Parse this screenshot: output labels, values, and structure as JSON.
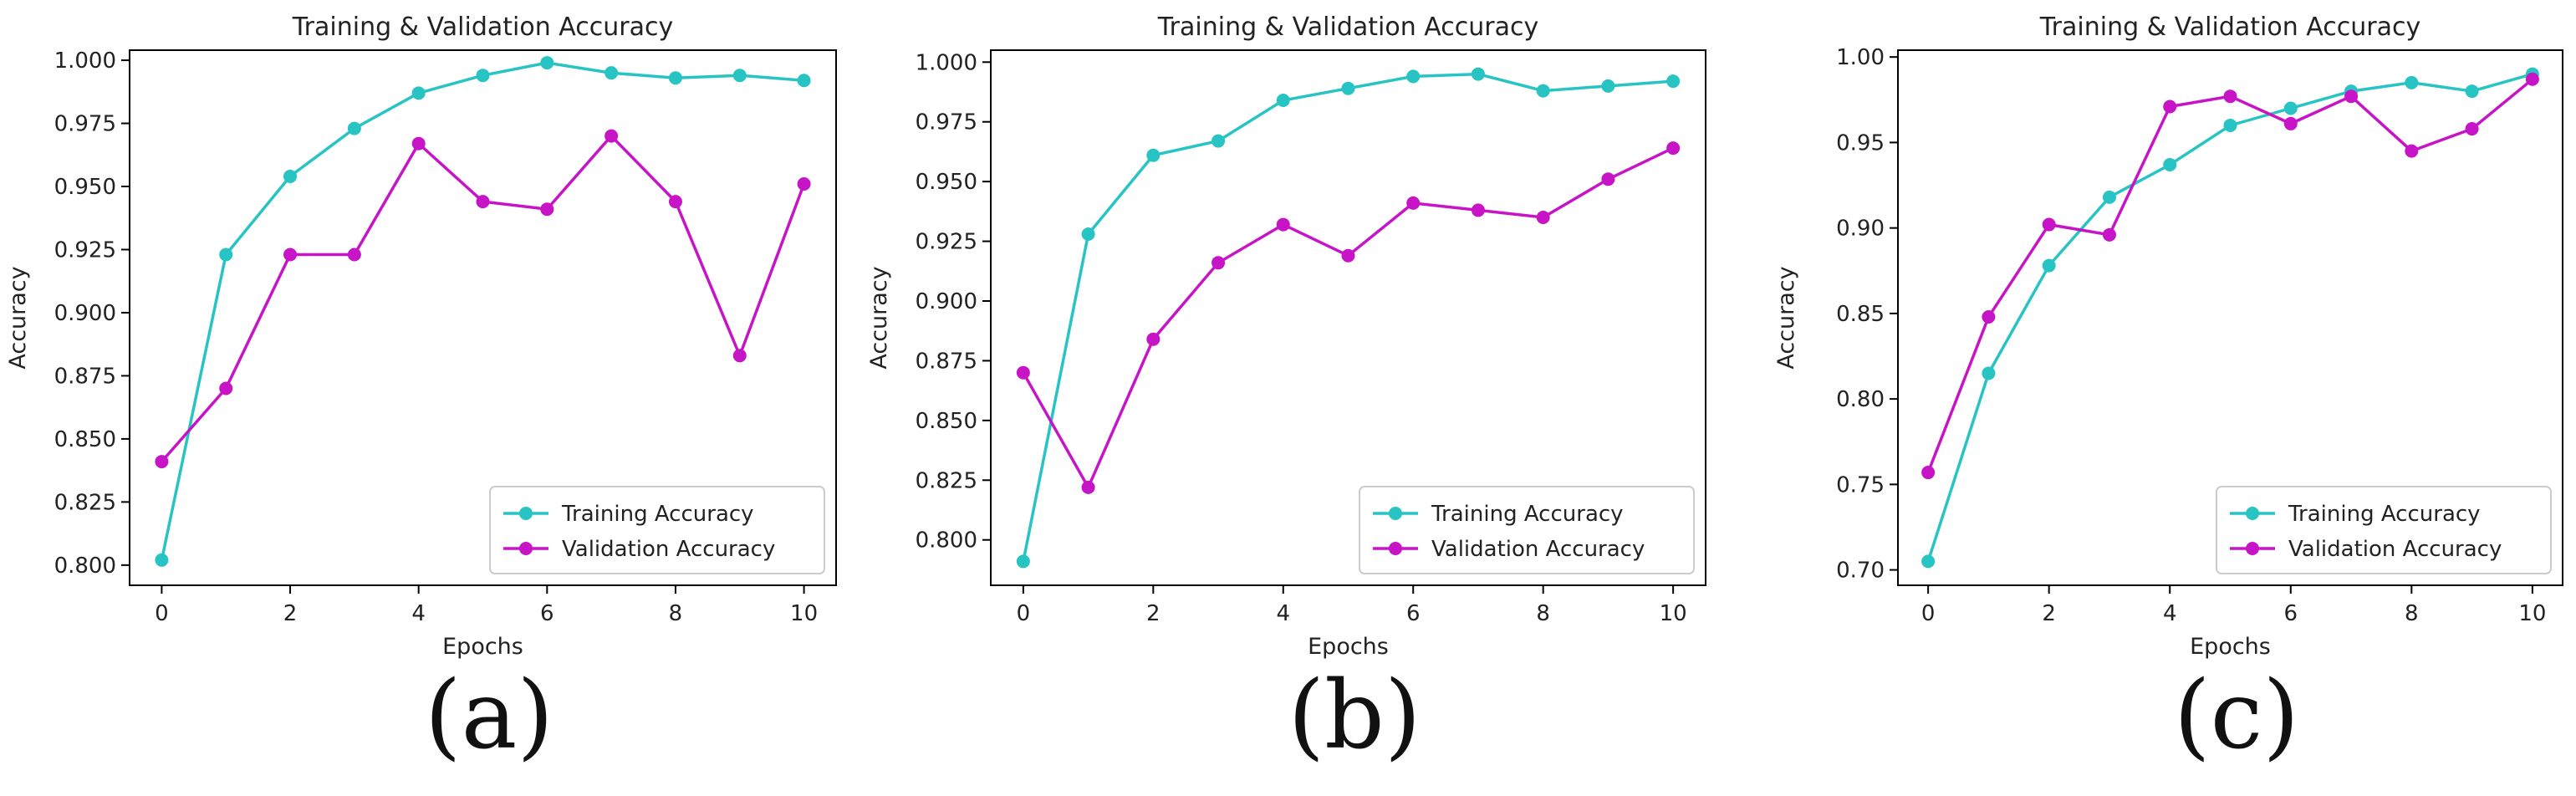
{
  "colors": {
    "training": "#28c4c4",
    "validation": "#c614c6",
    "axis": "#000000",
    "legend_border": "#cccccc"
  },
  "panels": [
    {
      "caption": "(a)"
    },
    {
      "caption": "(b)"
    },
    {
      "caption": "(c)"
    }
  ],
  "chart_data": [
    {
      "type": "line",
      "title": "Training & Validation Accuracy",
      "xlabel": "Epochs",
      "ylabel": "Accuracy",
      "x": [
        0,
        1,
        2,
        3,
        4,
        5,
        6,
        7,
        8,
        9,
        10
      ],
      "xlim": [
        -0.5,
        10.5
      ],
      "ylim": [
        0.792,
        1.004
      ],
      "xticks": [
        0,
        2,
        4,
        6,
        8,
        10
      ],
      "yticks": [
        0.8,
        0.825,
        0.85,
        0.875,
        0.9,
        0.925,
        0.95,
        0.975,
        1.0
      ],
      "ytick_labels": [
        "0.800",
        "0.825",
        "0.850",
        "0.875",
        "0.900",
        "0.925",
        "0.950",
        "0.975",
        "1.000"
      ],
      "grid": false,
      "legend_position": "bottom-right",
      "series": [
        {
          "name": "Training Accuracy",
          "values": [
            0.802,
            0.923,
            0.954,
            0.973,
            0.987,
            0.994,
            0.999,
            0.995,
            0.993,
            0.994,
            0.992
          ]
        },
        {
          "name": "Validation Accuracy",
          "values": [
            0.841,
            0.87,
            0.923,
            0.923,
            0.967,
            0.944,
            0.941,
            0.97,
            0.944,
            0.883,
            0.951
          ]
        }
      ]
    },
    {
      "type": "line",
      "title": "Training & Validation Accuracy",
      "xlabel": "Epochs",
      "ylabel": "Accuracy",
      "x": [
        0,
        1,
        2,
        3,
        4,
        5,
        6,
        7,
        8,
        9,
        10
      ],
      "xlim": [
        -0.5,
        10.5
      ],
      "ylim": [
        0.781,
        1.005
      ],
      "xticks": [
        0,
        2,
        4,
        6,
        8,
        10
      ],
      "yticks": [
        0.8,
        0.825,
        0.85,
        0.875,
        0.9,
        0.925,
        0.95,
        0.975,
        1.0
      ],
      "ytick_labels": [
        "0.800",
        "0.825",
        "0.850",
        "0.875",
        "0.900",
        "0.925",
        "0.950",
        "0.975",
        "1.000"
      ],
      "grid": false,
      "legend_position": "bottom-right",
      "series": [
        {
          "name": "Training Accuracy",
          "values": [
            0.791,
            0.928,
            0.961,
            0.967,
            0.984,
            0.989,
            0.994,
            0.995,
            0.988,
            0.99,
            0.992
          ]
        },
        {
          "name": "Validation Accuracy",
          "values": [
            0.87,
            0.822,
            0.884,
            0.916,
            0.932,
            0.919,
            0.941,
            0.938,
            0.935,
            0.951,
            0.964
          ]
        }
      ]
    },
    {
      "type": "line",
      "title": "Training & Validation Accuracy",
      "xlabel": "Epochs",
      "ylabel": "Accuracy",
      "x": [
        0,
        1,
        2,
        3,
        4,
        5,
        6,
        7,
        8,
        9,
        10
      ],
      "xlim": [
        -0.5,
        10.5
      ],
      "ylim": [
        0.691,
        1.004
      ],
      "xticks": [
        0,
        2,
        4,
        6,
        8,
        10
      ],
      "yticks": [
        0.7,
        0.75,
        0.8,
        0.85,
        0.9,
        0.95,
        1.0
      ],
      "ytick_labels": [
        "0.70",
        "0.75",
        "0.80",
        "0.85",
        "0.90",
        "0.95",
        "1.00"
      ],
      "grid": false,
      "legend_position": "bottom-right",
      "series": [
        {
          "name": "Training Accuracy",
          "values": [
            0.705,
            0.815,
            0.878,
            0.918,
            0.937,
            0.96,
            0.97,
            0.98,
            0.985,
            0.98,
            0.99
          ]
        },
        {
          "name": "Validation Accuracy",
          "values": [
            0.757,
            0.848,
            0.902,
            0.896,
            0.971,
            0.977,
            0.961,
            0.977,
            0.945,
            0.958,
            0.987
          ]
        }
      ]
    }
  ]
}
